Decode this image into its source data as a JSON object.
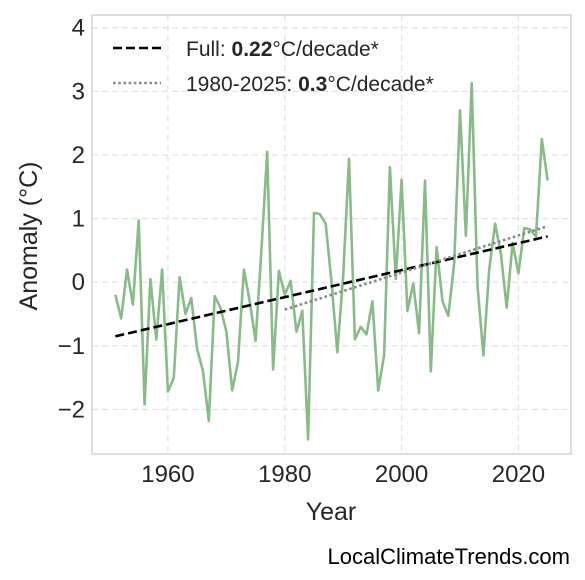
{
  "chart_data": {
    "type": "line",
    "xlabel": "Year",
    "ylabel": "Anomaly (°C)",
    "xlim": [
      1947,
      2029
    ],
    "ylim": [
      -2.7,
      4.2
    ],
    "x_ticks": [
      1960,
      1980,
      2000,
      2020
    ],
    "y_ticks": [
      -2,
      -1,
      0,
      1,
      2,
      3,
      4
    ],
    "grid": true,
    "legend_position": "top-left",
    "series": [
      {
        "color": "#88bb88",
        "x": [
          1951,
          1952,
          1953,
          1954,
          1955,
          1956,
          1957,
          1958,
          1959,
          1960,
          1961,
          1962,
          1963,
          1964,
          1965,
          1966,
          1967,
          1968,
          1969,
          1970,
          1971,
          1972,
          1973,
          1974,
          1975,
          1976,
          1977,
          1978,
          1979,
          1980,
          1981,
          1982,
          1983,
          1984,
          1985,
          1986,
          1987,
          1988,
          1989,
          1990,
          1991,
          1992,
          1993,
          1994,
          1995,
          1996,
          1997,
          1998,
          1999,
          2000,
          2001,
          2002,
          2003,
          2004,
          2005,
          2006,
          2007,
          2008,
          2009,
          2010,
          2011,
          2012,
          2013,
          2014,
          2015,
          2016,
          2017,
          2018,
          2019,
          2020,
          2021,
          2022,
          2023,
          2024,
          2025
        ],
        "values": [
          -0.2,
          -0.57,
          0.2,
          -0.35,
          0.97,
          -1.92,
          0.05,
          -0.9,
          0.2,
          -1.72,
          -1.5,
          0.08,
          -0.5,
          -0.25,
          -1.05,
          -1.4,
          -2.18,
          -0.22,
          -0.4,
          -0.78,
          -1.7,
          -1.25,
          0.2,
          -0.3,
          -0.92,
          0.5,
          2.05,
          -1.37,
          0.18,
          -0.2,
          0.02,
          -0.78,
          -0.45,
          -2.47,
          1.09,
          1.07,
          0.92,
          0.0,
          -1.1,
          0.1,
          1.94,
          -0.9,
          -0.7,
          -0.82,
          -0.3,
          -1.7,
          -1.15,
          1.81,
          0.05,
          1.61,
          -0.45,
          -0.02,
          -0.8,
          1.6,
          -1.4,
          0.55,
          -0.3,
          -0.53,
          0.3,
          2.7,
          0.73,
          3.13,
          -0.05,
          -1.15,
          0.2,
          0.92,
          0.45,
          -0.4,
          0.62,
          0.14,
          0.85,
          0.83,
          0.72,
          2.25,
          1.6
        ]
      },
      {
        "name": "Full: 0.22°C/decade*",
        "style": "dashed",
        "color": "#000000",
        "x": [
          1951,
          2025
        ],
        "values": [
          -0.85,
          0.72
        ]
      },
      {
        "name": "1980-2025: 0.3°C/decade*",
        "style": "dotted",
        "color": "#888888",
        "x": [
          1980,
          2025
        ],
        "values": [
          -0.43,
          0.88
        ]
      }
    ],
    "legend": [
      {
        "prefix": "Full: ",
        "bold": "0.22",
        "suffix": "°C/decade*"
      },
      {
        "prefix": "1980-2025: ",
        "bold": "0.3",
        "suffix": "°C/decade*"
      }
    ]
  },
  "credit": "LocalClimateTrends.com"
}
